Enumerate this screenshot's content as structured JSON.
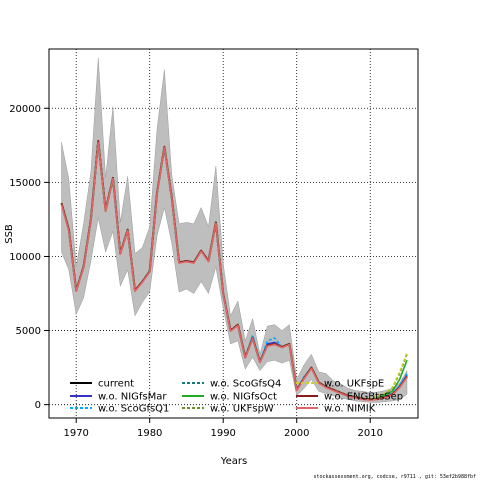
{
  "chart_data": {
    "type": "line",
    "title": "",
    "xlabel": "Years",
    "ylabel": "SSB",
    "xlim": [
      1966.3,
      2016.5
    ],
    "ylim": [
      -900,
      24000
    ],
    "xticks": [
      1970,
      1980,
      1990,
      2000,
      2010
    ],
    "yticks": [
      0,
      5000,
      10000,
      15000,
      20000
    ],
    "grid": true,
    "legend_placement": "bottom",
    "x": [
      1968,
      1969,
      1970,
      1971,
      1972,
      1973,
      1974,
      1975,
      1976,
      1977,
      1978,
      1979,
      1980,
      1981,
      1982,
      1983,
      1984,
      1985,
      1986,
      1987,
      1988,
      1989,
      1990,
      1991,
      1992,
      1993,
      1994,
      1995,
      1996,
      1997,
      1998,
      1999,
      2000,
      2001,
      2002,
      2003,
      2004,
      2005,
      2006,
      2007,
      2008,
      2009,
      2010,
      2011,
      2012,
      2013,
      2014,
      2015
    ],
    "band": {
      "color": "#bebebe",
      "upper": [
        17700,
        15200,
        9300,
        12200,
        15700,
        23400,
        15300,
        20100,
        12300,
        15400,
        10200,
        10600,
        12000,
        18600,
        22600,
        15500,
        12200,
        12300,
        12200,
        13300,
        12000,
        16100,
        9500,
        6000,
        7000,
        4300,
        5800,
        3400,
        5300,
        5400,
        5000,
        5400,
        1700,
        2700,
        3400,
        2200,
        2100,
        1600,
        1400,
        1100,
        950,
        900,
        800,
        850,
        950,
        1100,
        1450,
        2300
      ],
      "lower": [
        10300,
        9100,
        6100,
        7200,
        9700,
        12600,
        10300,
        11700,
        8000,
        9100,
        6000,
        6900,
        7600,
        11400,
        13300,
        10900,
        7600,
        7800,
        7500,
        8300,
        7500,
        9300,
        6500,
        4100,
        4300,
        2400,
        3200,
        2300,
        2900,
        3000,
        2800,
        3000,
        600,
        1100,
        1700,
        900,
        750,
        600,
        450,
        350,
        250,
        200,
        150,
        150,
        200,
        250,
        350,
        700
      ]
    },
    "series": [
      {
        "name": "current",
        "color": "#000000",
        "dash": "",
        "values": [
          13600,
          11800,
          7700,
          9300,
          12500,
          17800,
          13100,
          15300,
          10200,
          11800,
          7700,
          8300,
          9000,
          14300,
          17400,
          14000,
          9600,
          9700,
          9600,
          10400,
          9700,
          12300,
          7500,
          5000,
          5400,
          3200,
          4500,
          2900,
          4000,
          4100,
          3900,
          4100,
          1000,
          1800,
          2500,
          1500,
          1200,
          1000,
          800,
          600,
          500,
          400,
          350,
          400,
          500,
          700,
          1200,
          1900
        ]
      },
      {
        "name": "w.o. NIGfsMar",
        "color": "#3333cc",
        "dash": "",
        "values": [
          13600,
          11800,
          7700,
          9300,
          12500,
          17800,
          13100,
          15300,
          10200,
          11800,
          7700,
          8300,
          9000,
          14300,
          17400,
          14000,
          9600,
          9700,
          9600,
          10400,
          9700,
          12300,
          7500,
          5000,
          5400,
          3200,
          4600,
          2900,
          4100,
          4200,
          3900,
          4100,
          1000,
          1800,
          2500,
          1500,
          1200,
          1000,
          800,
          600,
          500,
          400,
          350,
          400,
          500,
          700,
          1250,
          2000
        ]
      },
      {
        "name": "w.o. ScoGfsQ1",
        "color": "#00aaff",
        "dash": "3,2",
        "values": [
          13600,
          11800,
          7700,
          9300,
          12500,
          17800,
          13100,
          15300,
          10200,
          11800,
          7700,
          8300,
          9000,
          14300,
          17400,
          14000,
          9600,
          9700,
          9600,
          10400,
          9700,
          12300,
          7500,
          5000,
          5400,
          3200,
          4700,
          2900,
          4300,
          4500,
          3900,
          4100,
          1000,
          1900,
          2500,
          1500,
          1200,
          1000,
          800,
          600,
          500,
          400,
          350,
          450,
          550,
          750,
          1300,
          2100
        ]
      },
      {
        "name": "w.o. ScoGfsQ4",
        "color": "#1a7a7a",
        "dash": "3,2",
        "values": [
          13600,
          11800,
          7700,
          9300,
          12500,
          17800,
          13100,
          15300,
          10200,
          11800,
          7700,
          8300,
          9000,
          14300,
          17400,
          14000,
          9600,
          9700,
          9600,
          10400,
          9700,
          12300,
          7500,
          5000,
          5400,
          3200,
          4500,
          2900,
          4000,
          4100,
          3900,
          4100,
          1000,
          1800,
          2500,
          1500,
          1200,
          1000,
          800,
          600,
          500,
          400,
          350,
          400,
          500,
          700,
          1200,
          1900
        ]
      },
      {
        "name": "w.o. NIGfsOct",
        "color": "#22aa22",
        "dash": "",
        "values": [
          13600,
          11800,
          7700,
          9300,
          12500,
          17800,
          13100,
          15300,
          10200,
          11800,
          7700,
          8300,
          9000,
          14300,
          17400,
          14000,
          9600,
          9700,
          9600,
          10400,
          9700,
          12300,
          7500,
          5000,
          5400,
          3200,
          4500,
          2900,
          4000,
          4100,
          3900,
          4100,
          1000,
          1800,
          2500,
          1500,
          1200,
          1000,
          800,
          600,
          500,
          400,
          350,
          500,
          650,
          900,
          1700,
          3000
        ]
      },
      {
        "name": "w.o. UKFspW",
        "color": "#6b8e23",
        "dash": "3,2",
        "values": [
          13600,
          11800,
          7700,
          9300,
          12500,
          17800,
          13100,
          15300,
          10200,
          11800,
          7700,
          8300,
          9000,
          14300,
          17400,
          14000,
          9600,
          9700,
          9600,
          10400,
          9700,
          12300,
          7500,
          5000,
          5400,
          3200,
          4500,
          2900,
          4000,
          4100,
          3900,
          4100,
          1000,
          1800,
          2500,
          1500,
          1200,
          1000,
          800,
          600,
          500,
          400,
          400,
          550,
          750,
          1100,
          2100,
          3400
        ]
      },
      {
        "name": "w.o. UKFspE",
        "color": "#cccc33",
        "dash": "3,2",
        "values": [
          13600,
          11800,
          7700,
          9300,
          12500,
          17800,
          13100,
          15300,
          10200,
          11800,
          7700,
          8300,
          9000,
          14300,
          17400,
          14000,
          9600,
          9700,
          9600,
          10400,
          9700,
          12300,
          7500,
          5000,
          5400,
          3200,
          4500,
          2900,
          4000,
          4100,
          3900,
          4100,
          1000,
          1800,
          2500,
          1500,
          1200,
          1000,
          800,
          600,
          500,
          400,
          400,
          550,
          800,
          1150,
          2200,
          3500
        ]
      },
      {
        "name": "w.o. ENGBtsSep",
        "color": "#8b1a1a",
        "dash": "",
        "values": [
          13600,
          11800,
          7700,
          9300,
          12500,
          17800,
          13100,
          15300,
          10200,
          11800,
          7700,
          8300,
          9000,
          14300,
          17400,
          14000,
          9600,
          9700,
          9600,
          10400,
          9700,
          12300,
          7500,
          5000,
          5400,
          3200,
          4500,
          2900,
          4000,
          4100,
          3900,
          4100,
          1000,
          1800,
          2500,
          1500,
          1200,
          1000,
          800,
          600,
          500,
          400,
          350,
          400,
          500,
          700,
          1200,
          1900
        ]
      },
      {
        "name": "w.o. NIMIK",
        "color": "#e06666",
        "dash": "",
        "values": [
          13500,
          11700,
          7650,
          9250,
          12450,
          17700,
          13050,
          15250,
          10150,
          11750,
          7650,
          8250,
          8950,
          14250,
          17350,
          13950,
          9550,
          9650,
          9550,
          10350,
          9650,
          12250,
          7450,
          4950,
          5350,
          3150,
          4450,
          2850,
          3950,
          4050,
          3850,
          4050,
          950,
          1750,
          2450,
          1450,
          1150,
          950,
          750,
          550,
          450,
          350,
          300,
          350,
          450,
          650,
          1150,
          1850
        ]
      }
    ]
  },
  "footer": "stockassessment.org, codcse, r9711 , git: 53ef2b988fbf"
}
